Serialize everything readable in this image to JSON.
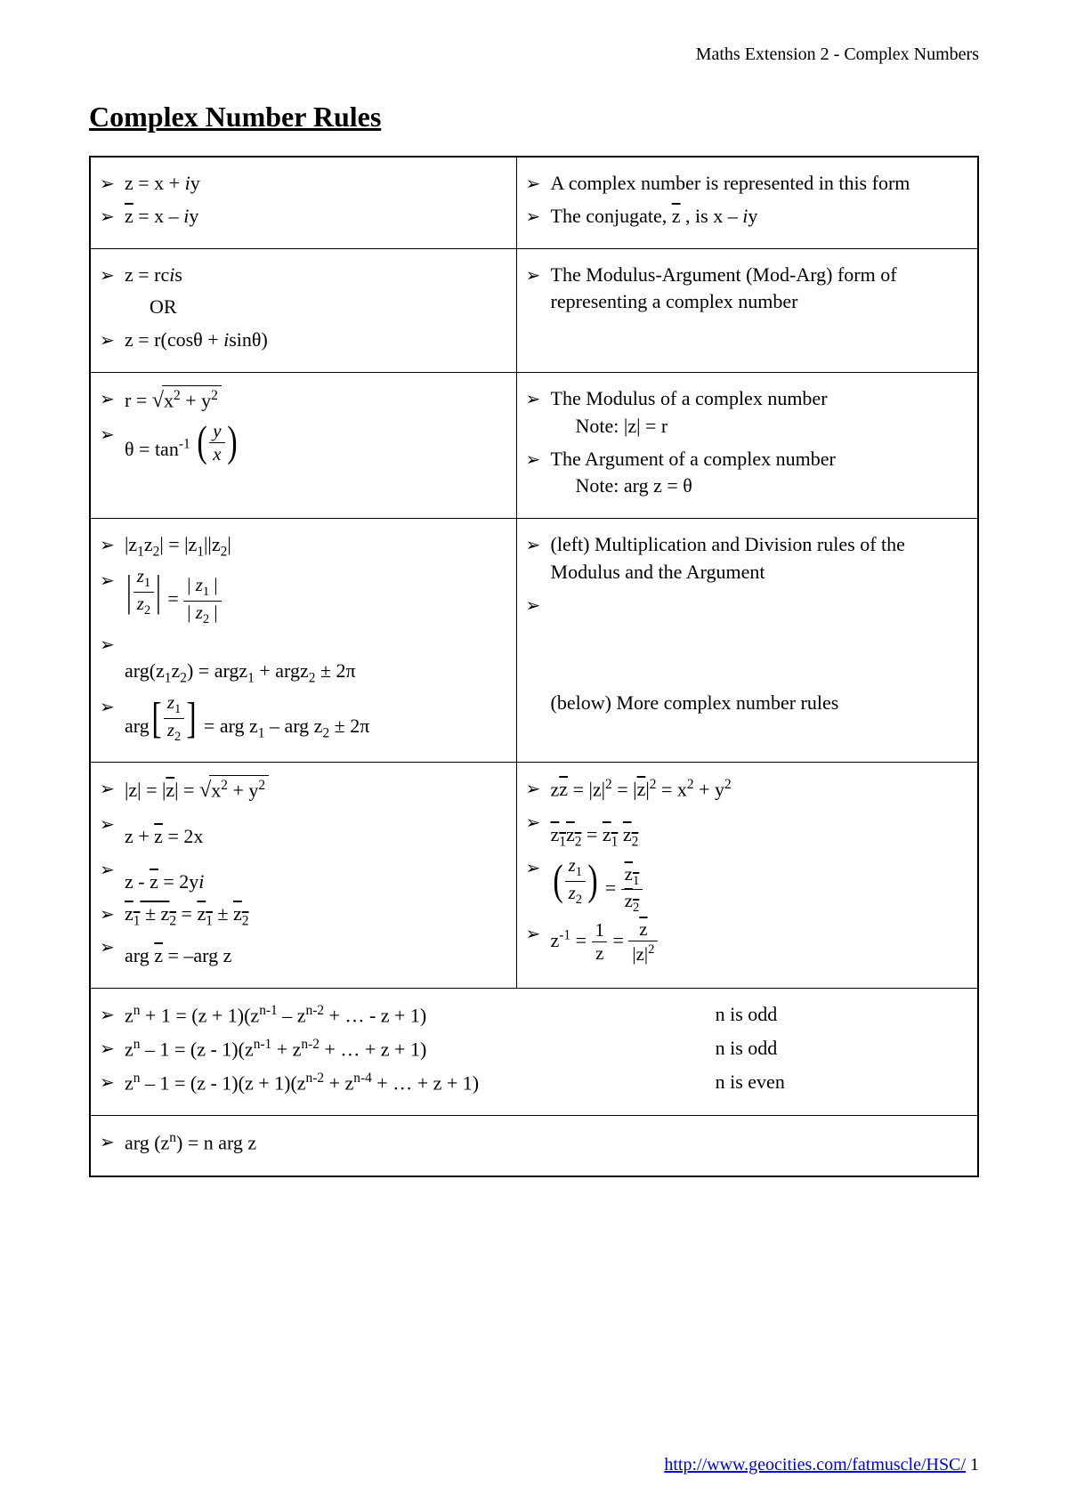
{
  "header": {
    "course": "Maths Extension 2 - Complex Numbers"
  },
  "title": "Complex Number Rules",
  "colors": {
    "text": "#000000",
    "background": "#ffffff",
    "border": "#000000",
    "link": "#0000ee"
  },
  "typography": {
    "base_font": "Times New Roman",
    "body_fontsize_pt": 16,
    "title_fontsize_pt": 24
  },
  "bullet": "➢",
  "rows": [
    {
      "left": [
        {
          "type": "eq",
          "text": "z = x + iy",
          "italic_i": true
        },
        {
          "type": "eq",
          "text_overline": "z",
          "text_rest": " = x – iy",
          "italic_i": true
        }
      ],
      "left_html": [
        "z = x + <span class='ital'>i</span>y",
        "<span class='ovl'>z</span> = x – <span class='ital'>i</span>y"
      ],
      "right": [
        "A complex number is represented in this form",
        "The conjugate, z̄, is x – iy"
      ],
      "right_html": [
        "A complex number is represented in this form",
        "The conjugate, <span class='ovl'>z</span> , is x – <span class='ital'>i</span>y"
      ]
    },
    {
      "left": [
        "z = rcis",
        "OR",
        "z = r(cosθ + isinθ)"
      ],
      "left_html": [
        "z = rc<span class='ital'>i</span>s",
        "<span class='indent'>OR</span>",
        "z = r(cosθ + <span class='ital'>i</span>sinθ)"
      ],
      "left_plain_indices": [
        1
      ],
      "right": [
        "The Modulus-Argument (Mod-Arg) form of representing a complex number"
      ],
      "right_html": [
        "The Modulus-Argument (Mod-Arg) form of representing a complex number"
      ]
    },
    {
      "left": [
        "r = √(x² + y²)",
        "θ = tan⁻¹(y/x)"
      ],
      "left_html": [
        "r = <span class='sqrt'><span class='rad'>x<sup>2</sup> + y<sup>2</sup></span></span>",
        "θ = tan<sup>-1</sup> <span class='bigparen'><span class='lp'>(</span><span class='frac'><span class='num'><span class='ital'>y</span></span><span class='den'><span class='ital'>x</span></span></span><span class='rp'>)</span></span>"
      ],
      "right": [
        "The Modulus of a complex number",
        "Note: |z| = r",
        "The Argument of a complex number",
        "Note: arg z = θ"
      ],
      "right_html": [
        "The Modulus of a complex number<span class='note-indent'>Note: |z| = r</span>",
        "The Argument of a complex number<span class='note-indent'>Note: arg z = θ</span>"
      ]
    },
    {
      "left": [
        "|z₁z₂| = |z₁||z₂|",
        "|z₁/z₂| = |z₁|/|z₂|",
        "arg(z₁z₂) = argz₁ + argz₂ ± 2π",
        "arg[z₁/z₂] = arg z₁ – arg z₂ ± 2π"
      ],
      "left_html": [
        "|z<sub>1</sub>z<sub>2</sub>| = |z<sub>1</sub>||z<sub>2</sub>|",
        "<span class='mtall'><span class='absfrac'><span class='ab'>|</span><span class='frac'><span class='num'><span class='ital'>z</span><sub>1</sub></span><span class='den'><span class='ital'>z</span><sub>2</sub></span></span><span class='ab'>|</span></span> = <span class='frac'><span class='num'>| <span class='ital'>z</span><sub>1</sub> |</span><span class='den'>| <span class='ital'>z</span><sub>2</sub> |</span></span></span>",
        "<div style='height:30px'></div>arg(z<sub>1</sub>z<sub>2</sub>) = argz<sub>1</sub> + argz<sub>2</sub> ± 2π",
        "<span class='mtall'>arg<span class='bigbrak'><span class='lb'>[</span><span class='frac'><span class='num'><span class='ital'>z</span><sub>1</sub></span><span class='den'><span class='ital'>z</span><sub>2</sub></span></span><span class='rb'>]</span></span> = arg z<sub>1</sub> – arg z<sub>2</sub> ± 2π</span>"
      ],
      "right": [
        "(left) Multiplication and Division rules of the Modulus and the Argument",
        "(below) More complex number rules"
      ],
      "right_html": [
        "(left) Multiplication and Division rules of the Modulus and the Argument",
        "<div style='height:110px'></div>(below) More complex number rules"
      ]
    },
    {
      "left": [
        "|z| = |z̄| = √(x² + y²)",
        "z + z̄ = 2x",
        "z - z̄ = 2yi",
        "(z₁ ± z₂)̄ = z̄₁ ± z̄₂",
        "arg z̄ = –arg z"
      ],
      "left_html": [
        "|z| = |<span class='ovl'>z</span>| = <span class='sqrt'><span class='rad'>x<sup>2</sup> + y<sup>2</sup></span></span>",
        "<div style='height:14px'></div>z + <span class='ovl'>z</span> = 2x",
        "<div style='height:14px'></div>z - <span class='ovl'>z</span> = 2y<span class='ital'>i</span>",
        "<span class='ovl'>z<sub>1</sub> ± z<sub>2</sub></span> = <span class='ovl'>z<sub>1</sub></span> ± <span class='ovl'>z<sub>2</sub></span>",
        "<div style='height:10px'></div>arg <span class='ovl'>z</span> = –arg z"
      ],
      "right": [
        "z z̄ = |z|² = |z̄|² = x² + y²",
        "(z₁z₂)̄ = z̄₁ z̄₂",
        "(z₁/z₂)̄ = z̄₁/z̄₂",
        "z⁻¹ = 1/z = z̄/|z|²"
      ],
      "right_html": [
        "z<span class='ovl'>z</span> = |z|<sup>2</sup> = |<span class='ovl'>z</span>|<sup>2</sup> = x<sup>2</sup> + y<sup>2</sup>",
        "<div style='height:14px'></div><span class='ovl'>z<sub>1</sub>z<sub>2</sub></span> = <span class='ovl'>z<sub>1</sub></span> <span class='ovl'>z<sub>2</sub></span>",
        "<span class='mtall'><span class='ovl' style='padding-top:2px'><span class='bigparen'><span class='lp'>(</span><span class='frac'><span class='num'><span class='ital'>z</span><sub>1</sub></span><span class='den'><span class='ital'>z</span><sub>2</sub></span></span><span class='rp'>)</span></span></span> = <span class='frac'><span class='num'><span class='ovl'>z<sub>1</sub></span></span><span class='den'><span class='ovl'>z<sub>2</sub></span></span></span></span>",
        "<span class='mtall'>z<sup>-1</sup> = <span class='frac'><span class='num'>1</span><span class='den'>z</span></span> = <span class='frac'><span class='num'><span class='ovl'>z</span></span><span class='den'>|z|<sup>2</sup></span></span></span>"
      ],
      "right_is_math": true,
      "two_col_math": true
    },
    {
      "left": [
        "zⁿ + 1 = (z + 1)(zⁿ⁻¹ – zⁿ⁻² + … - z + 1)          n is odd",
        "zⁿ – 1 = (z - 1)(zⁿ⁻¹ + zⁿ⁻² + … + z + 1)          n is odd",
        "zⁿ – 1 = (z - 1)(z + 1)(zⁿ⁻² + zⁿ⁻⁴ + … + z + 1)    n is even"
      ],
      "left_html": [
        "<div class='poly-row'><div class='lhs'>z<sup>n</sup> + 1 = (z + 1)(z<sup>n-1</sup> – z<sup>n-2</sup> + … - z + 1)</div><div class='rhs'>n is odd</div></div>",
        "<div class='poly-row'><div class='lhs'>z<sup>n</sup> – 1 = (z - 1)(z<sup>n-1</sup> + z<sup>n-2</sup> + … + z + 1)</div><div class='rhs'>n is odd</div></div>",
        "<div class='poly-row'><div class='lhs'>z<sup>n</sup> – 1 = (z - 1)(z + 1)(z<sup>n-2</sup> + z<sup>n-4</sup> + … + z + 1)</div><div class='rhs'>n is even</div></div>"
      ],
      "span_full": true
    },
    {
      "left": [
        "arg (zⁿ) = n arg z"
      ],
      "left_html": [
        "arg (z<sup>n</sup>) = n arg z"
      ],
      "span_full": true
    }
  ],
  "footer": {
    "url": "http://www.geocities.com/fatmuscle/HSC/",
    "page_num": "1"
  }
}
